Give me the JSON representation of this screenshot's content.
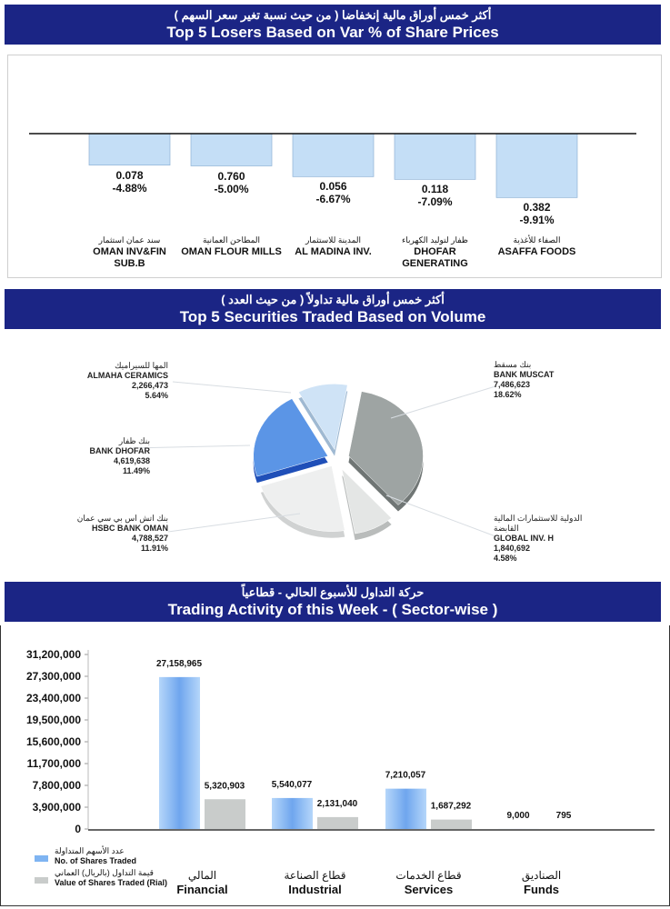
{
  "losers": {
    "title_ar": "أكثر خمس أوراق مالية إنخفاضا ( من حيث نسبة تغير سعر السهم )",
    "title_en": "Top 5 Losers Based on Var % of Share Prices",
    "chart_data": {
      "type": "bar",
      "categories": [
        "OMAN INV&FIN SUB.B",
        "OMAN FLOUR MILLS",
        "AL MADINA INV.",
        "DHOFAR GENERATING",
        "ASAFFA FOODS"
      ],
      "categories_ar": [
        "سند عمان استثمار",
        "المطاحن العمانية",
        "المدينة للاستثمار",
        "ظفار لتوليد الكهرباء",
        "الصفاء للأغذية"
      ],
      "prices": [
        "0.078",
        "0.760",
        "0.056",
        "0.118",
        "0.382"
      ],
      "change_labels": [
        "-4.88%",
        "-5.00%",
        "-6.67%",
        "-7.09%",
        "-9.91%"
      ],
      "values": [
        -4.88,
        -5.0,
        -6.67,
        -7.09,
        -9.91
      ],
      "ylim": [
        -12,
        0
      ],
      "bar_color": "#c4def6"
    }
  },
  "volume": {
    "title_ar": "أكثر خمس أوراق مالية تداولاً ( من حيث العدد )",
    "title_en": "Top 5 Securities Traded Based on Volume",
    "chart_data": {
      "type": "pie",
      "slices": [
        {
          "name": "BANK MUSCAT",
          "name_ar": "بنك مسقط",
          "value": 7486623,
          "value_label": "7,486,623",
          "pct_label": "18.62%",
          "color": "#9ea4a3",
          "side": "#707675"
        },
        {
          "name": "GLOBAL INV. H",
          "name_ar": "الدولية للاستثمارات المالية القابضة",
          "value": 1840692,
          "value_label": "1,840,692",
          "pct_label": "4.58%",
          "color": "#e4e6e5",
          "side": "#b9bcbb"
        },
        {
          "name": "HSBC BANK OMAN",
          "name_ar": "بنك اتش اس بي سي عمان",
          "value": 4788527,
          "value_label": "4,788,527",
          "pct_label": "11.91%",
          "color": "#eeefef",
          "side": "#d0d2d2"
        },
        {
          "name": "BANK DHOFAR",
          "name_ar": "بنك ظفار",
          "value": 4619638,
          "value_label": "4,619,638",
          "pct_label": "11.49%",
          "color": "#5b95e6",
          "side": "#1f4fb8"
        },
        {
          "name": "ALMAHA CERAMICS",
          "name_ar": "المها للسيراميك",
          "value": 2266473,
          "value_label": "2,266,473",
          "pct_label": "5.64%",
          "color": "#cfe3f6",
          "side": "#9fb9d2"
        }
      ]
    }
  },
  "sector": {
    "title_ar": "حركة التداول للأسبوع الحالي - قطاعياً",
    "title_en": "Trading Activity of this Week - ( Sector-wise )",
    "chart_data": {
      "type": "bar",
      "categories": [
        "Financial",
        "Industrial",
        "Services",
        "Funds"
      ],
      "categories_ar": [
        "المالي",
        "قطاع الصناعة",
        "قطاع الخدمات",
        "الصناديق"
      ],
      "series": [
        {
          "name": "No. of Shares Traded",
          "name_ar": "عدد الأسهم المتداولة",
          "values": [
            27158965,
            5540077,
            7210057,
            9000
          ],
          "labels": [
            "27,158,965",
            "5,540,077",
            "7,210,057",
            "9,000"
          ],
          "color": "#7fb4f2"
        },
        {
          "name": "Value of Shares Traded (Rial)",
          "name_ar": "قيمة التداول (بالريال) العماني",
          "values": [
            5320903,
            2131040,
            1687292,
            795
          ],
          "labels": [
            "5,320,903",
            "2,131,040",
            "1,687,292",
            "795"
          ],
          "color": "#c9cccb"
        }
      ],
      "yticks": [
        "0",
        "3,900,000",
        "7,800,000",
        "11,700,000",
        "15,600,000",
        "19,500,000",
        "23,400,000",
        "27,300,000",
        "31,200,000"
      ],
      "ylim": [
        0,
        31200000
      ],
      "legend": "bottom-left"
    }
  }
}
